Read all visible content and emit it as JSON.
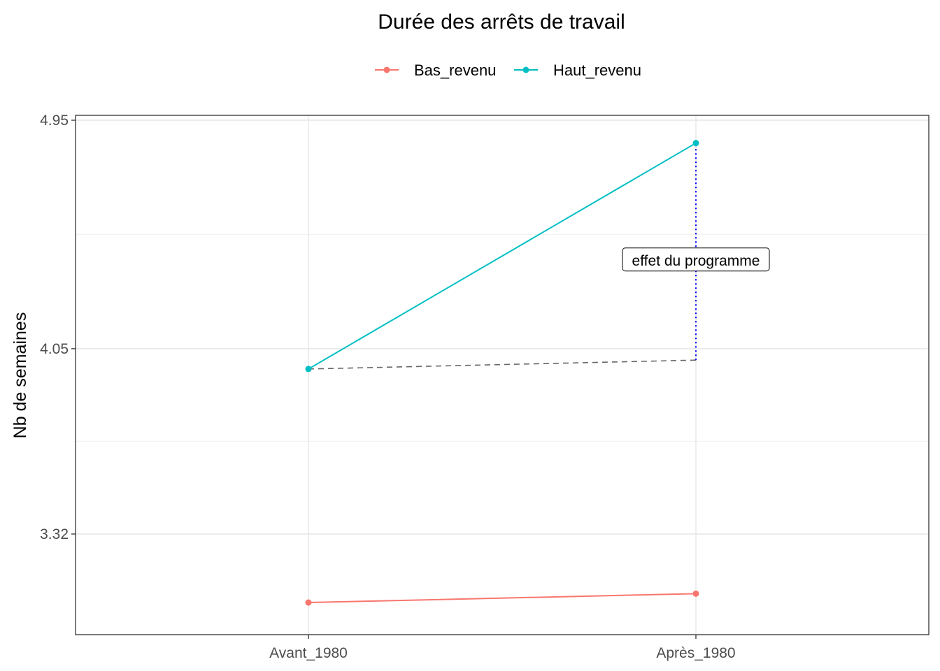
{
  "chart_data": {
    "type": "line",
    "title": "Durée des arrêts de travail",
    "xlabel": "",
    "ylabel": "Nb de semaines",
    "categories": [
      "Avant_1980",
      "Après_1980"
    ],
    "yticks": [
      3.32,
      4.05,
      4.95
    ],
    "ylim": [
      2.88,
      5.13
    ],
    "grid": true,
    "legend_position": "top",
    "series": [
      {
        "name": "Bas_revenu",
        "color": "#F8766D",
        "values": [
          3.05,
          3.085
        ]
      },
      {
        "name": "Haut_revenu",
        "color": "#00BFC4",
        "values": [
          3.97,
          4.86
        ]
      }
    ],
    "counterfactual": {
      "style": "dashed",
      "color": "#666666",
      "values": [
        3.97,
        4.005
      ]
    },
    "effect_segment": {
      "category": "Après_1980",
      "from": 4.005,
      "to": 4.86,
      "color": "#0000FF",
      "style": "dotted"
    },
    "annotation": {
      "text": "effet du programme",
      "category": "Après_1980",
      "y": 4.4
    }
  }
}
